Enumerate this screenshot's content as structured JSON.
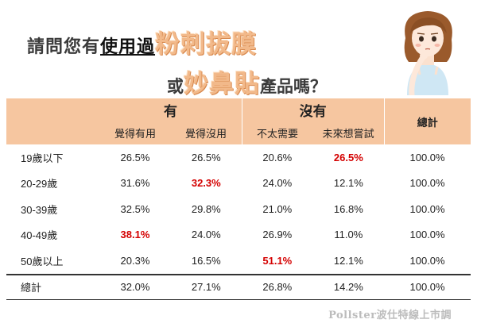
{
  "title": {
    "line1_prefix": "請問您有",
    "line1_underlined": "使用過",
    "line1_product": "粉刺拔膜",
    "line2_prefix": "或",
    "line2_product": "妙鼻貼",
    "line2_suffix": "產品嗎？"
  },
  "table": {
    "group_yes": "有",
    "group_no": "沒有",
    "total_header": "總計",
    "sub_headers": [
      "覺得有用",
      "覺得沒用",
      "不太需要",
      "未來想嘗試"
    ],
    "rows": [
      {
        "label": "19歲以下",
        "values": [
          "26.5%",
          "26.5%",
          "20.6%",
          "26.5%",
          "100.0%"
        ]
      },
      {
        "label": "20-29歲",
        "values": [
          "31.6%",
          "32.3%",
          "24.0%",
          "12.1%",
          "100.0%"
        ]
      },
      {
        "label": "30-39歲",
        "values": [
          "32.5%",
          "29.8%",
          "21.0%",
          "16.8%",
          "100.0%"
        ]
      },
      {
        "label": "40-49歲",
        "values": [
          "38.1%",
          "24.0%",
          "26.9%",
          "11.0%",
          "100.0%"
        ]
      },
      {
        "label": "50歲以上",
        "values": [
          "20.3%",
          "16.5%",
          "51.1%",
          "12.1%",
          "100.0%"
        ]
      }
    ],
    "total_row": {
      "label": "總計",
      "values": [
        "32.0%",
        "27.1%",
        "26.8%",
        "14.2%",
        "100.0%"
      ]
    },
    "highlight_color": "#d40000",
    "header_color": "#f6c6a0"
  },
  "footer": {
    "source": "Pollster波仕特線上市調"
  },
  "illustration": {
    "icon": "thinking-woman-illustration"
  }
}
